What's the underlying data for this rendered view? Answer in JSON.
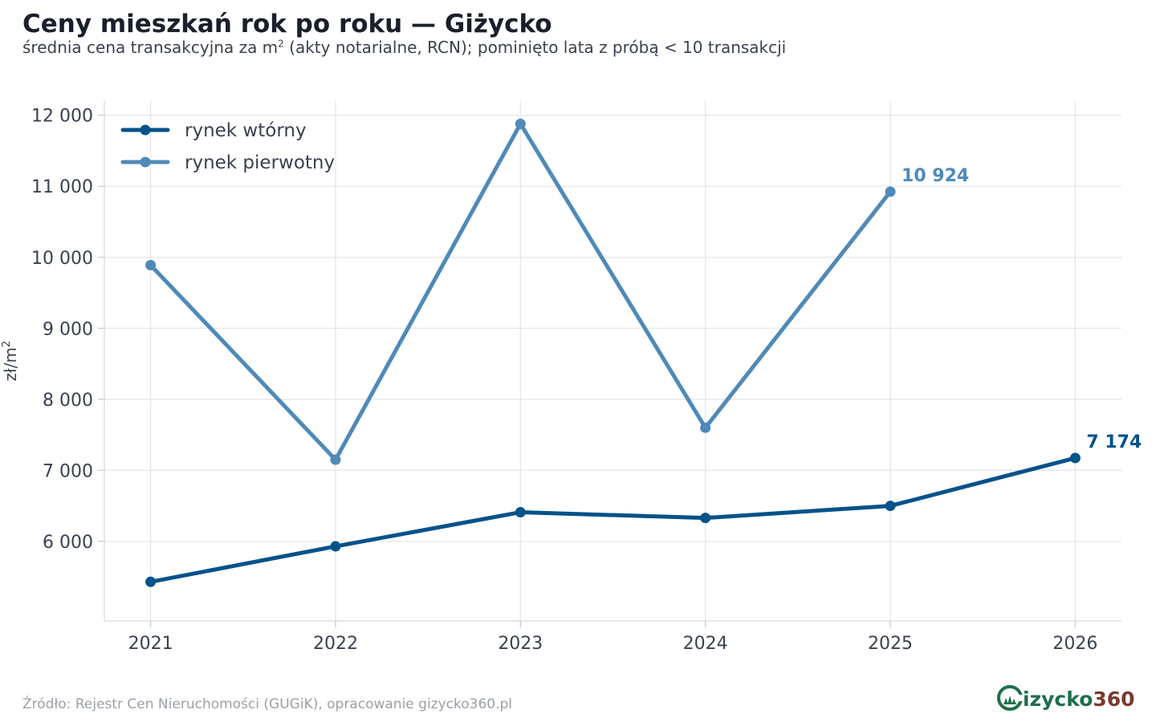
{
  "chart_data": {
    "type": "line",
    "title": "Ceny mieszkań rok po roku — Giżycko",
    "subtitle_before": "średnia cena transakcyjna za m",
    "subtitle_sup": "2",
    "subtitle_after": " (akty notarialne, RCN); pominięto lata z próbą < 10 transakcji",
    "ylabel_base": "zł/m",
    "ylabel_sup": "2",
    "xlabel": "",
    "x": [
      2021,
      2022,
      2023,
      2024,
      2025,
      2026
    ],
    "x_tick_labels": [
      "2021",
      "2022",
      "2023",
      "2024",
      "2025",
      "2026"
    ],
    "yticks": [
      6000,
      7000,
      8000,
      9000,
      10000,
      11000,
      12000
    ],
    "ytick_labels": [
      "6 000",
      "7 000",
      "8 000",
      "9 000",
      "10 000",
      "11 000",
      "12 000"
    ],
    "ylim": [
      4880,
      12200
    ],
    "xlim": [
      2020.75,
      2026.25
    ],
    "grid": true,
    "legend_position": "top-left",
    "series": [
      {
        "name": "rynek wtórny",
        "color": "#03528a",
        "values": [
          5430,
          5930,
          6410,
          6330,
          6500,
          7174
        ],
        "end_label": "7 174"
      },
      {
        "name": "rynek pierwotny",
        "color": "#4f8ab8",
        "values": [
          9890,
          7150,
          11880,
          7600,
          10924,
          null
        ],
        "end_label": "10 924"
      }
    ]
  },
  "footer": {
    "source": "Źródło: Rejestr Cen Nieruchomości (GUGiK), opracowanie gizycko360.pl"
  },
  "logo": {
    "text_main": "izycko",
    "text_accent": "360",
    "color_main": "#1f6f4a",
    "color_accent": "#7a3a2e"
  }
}
